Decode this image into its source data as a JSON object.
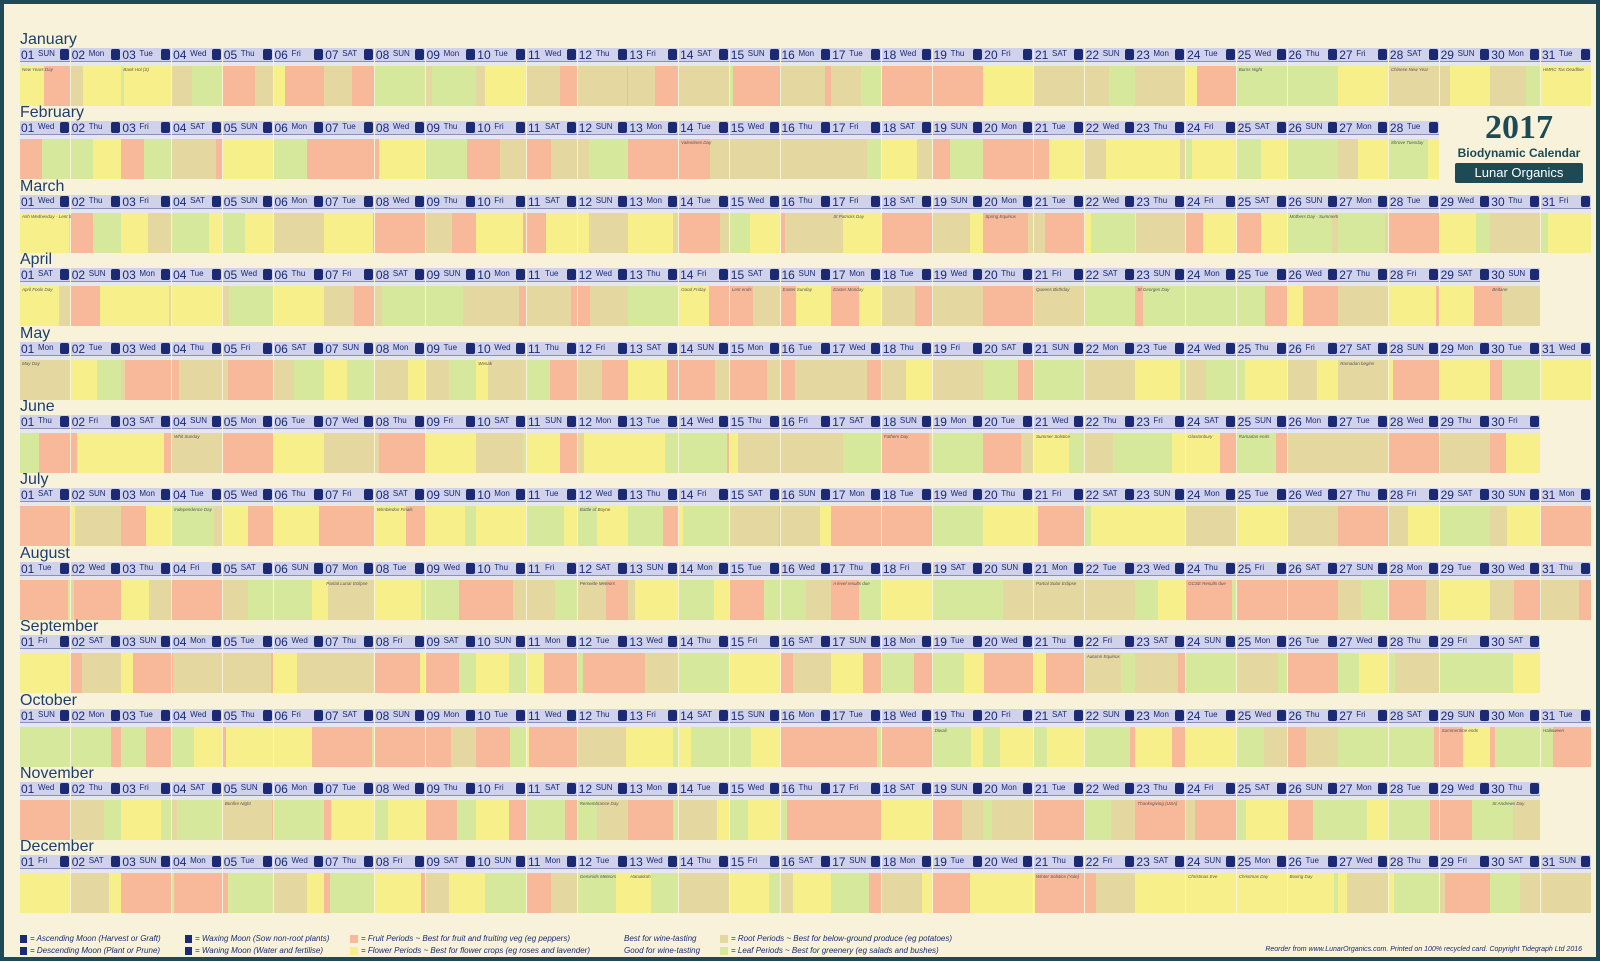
{
  "poster": {
    "year": "2017",
    "subtitle": "Biodynamic Calendar",
    "brand": "Lunar Organics"
  },
  "weekday_abbrevs": [
    "SUN",
    "Mon",
    "Tue",
    "Wed",
    "Thu",
    "Fri",
    "SAT"
  ],
  "months": [
    {
      "name": "January",
      "days": 31,
      "start": 0,
      "events": {
        "1": "New Years Day",
        "3": "Bank Hol (S)",
        "25": "Burns Night",
        "28": "Chinese New Year",
        "31": "HMRC Tax Deadline"
      }
    },
    {
      "name": "February",
      "days": 28,
      "start": 3,
      "events": {
        "14": "Valentines Day",
        "28": "Shrove Tuesday"
      }
    },
    {
      "name": "March",
      "days": 31,
      "start": 3,
      "events": {
        "1": "Ash Wednesday · Lent begins",
        "17": "St Patricks Day",
        "20": "Spring Equinox",
        "26": "Mothers Day · Summertime Starts"
      }
    },
    {
      "name": "April",
      "days": 30,
      "start": 6,
      "events": {
        "1": "April Fools Day",
        "14": "Good Friday",
        "15": "Lent ends",
        "16": "Easter Sunday",
        "17": "Easter Monday",
        "21": "Queens Birthday",
        "23": "St Georges Day",
        "30": "Beltane"
      }
    },
    {
      "name": "May",
      "days": 31,
      "start": 1,
      "events": {
        "1": "May Day",
        "10": "Wesak",
        "27": "Ramadan begins"
      }
    },
    {
      "name": "June",
      "days": 30,
      "start": 4,
      "events": {
        "4": "Whit Sunday",
        "18": "Fathers Day",
        "21": "Summer Solstice",
        "24": "Glastonbury",
        "25": "Ramadan ends"
      }
    },
    {
      "name": "July",
      "days": 31,
      "start": 6,
      "events": {
        "4": "Independence Day",
        "8": "Wimbledon Finals",
        "12": "Battle of Boyne"
      }
    },
    {
      "name": "August",
      "days": 31,
      "start": 2,
      "events": {
        "7": "Partial Lunar Eclipse",
        "12": "Perseide Meteors",
        "17": "A level results due",
        "21": "Partial Solar Eclipse",
        "24": "GCSE Results due"
      }
    },
    {
      "name": "September",
      "days": 30,
      "start": 5,
      "events": {
        "22": "Autumn Equinox"
      }
    },
    {
      "name": "October",
      "days": 31,
      "start": 0,
      "events": {
        "19": "Diwali",
        "29": "Summertime ends",
        "31": "Halloween"
      }
    },
    {
      "name": "November",
      "days": 30,
      "start": 3,
      "events": {
        "5": "Bonfire Night",
        "12": "Remembrance Day",
        "23": "Thanksgiving (USA)",
        "30": "St Andrews Day"
      }
    },
    {
      "name": "December",
      "days": 31,
      "start": 5,
      "events": {
        "12": "Geminids Meteors",
        "13": "Hanukkah",
        "21": "Winter Solstice (Yule)",
        "24": "Christmas Eve",
        "25": "Christmas Day",
        "26": "Boxing Day"
      }
    }
  ],
  "periods": {
    "fruit": "#f7b99a",
    "flower": "#f7ef8a",
    "root": "#e4d7a0",
    "leaf": "#d6e89c"
  },
  "legend": {
    "ascending": "= Ascending Moon (Harvest or Graft)",
    "descending": "= Descending Moon (Plant or Prune)",
    "waxing": "= Waxing Moon (Sow non-root plants)",
    "waning": "= Waning Moon (Water and fertilise)",
    "fruit": "= Fruit Periods ~ Best for fruit and fruiting veg (eg peppers)",
    "fruit_wine": "Best for wine-tasting",
    "flower": "= Flower Periods ~ Best for flower crops (eg roses and lavender)",
    "flower_wine": "Good for wine-tasting",
    "root": "= Root Periods ~ Best for below-ground produce (eg potatoes)",
    "leaf": "= Leaf Periods ~ Best for greenery (eg salads and bushes)"
  },
  "footer": "Reorder from www.LunarOrganics.com. Printed on 100% recycled card. Copyright Tidegraph Ltd 2016"
}
